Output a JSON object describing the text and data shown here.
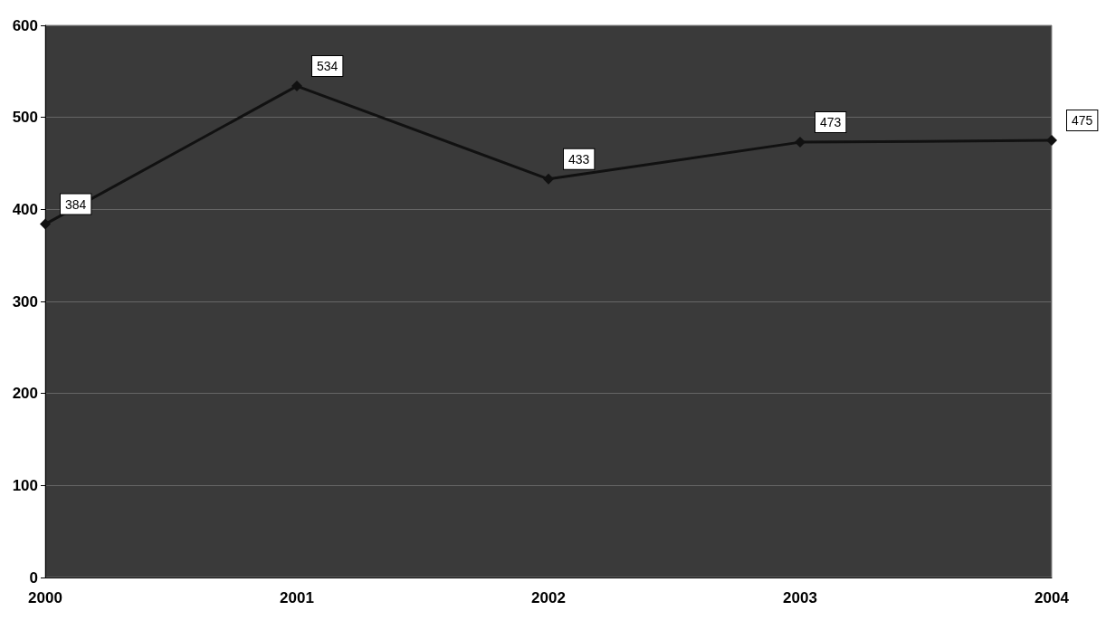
{
  "chart_data": {
    "type": "line",
    "categories": [
      "2000",
      "2001",
      "2002",
      "2003",
      "2004"
    ],
    "series": [
      {
        "color": "#111111",
        "values": [
          384,
          534,
          433,
          473,
          475
        ]
      }
    ],
    "ylim": [
      0,
      600
    ],
    "yticks": [
      0,
      100,
      200,
      300,
      400,
      500,
      600
    ],
    "grid": "y",
    "marker": "diamond",
    "data_labels": true
  }
}
